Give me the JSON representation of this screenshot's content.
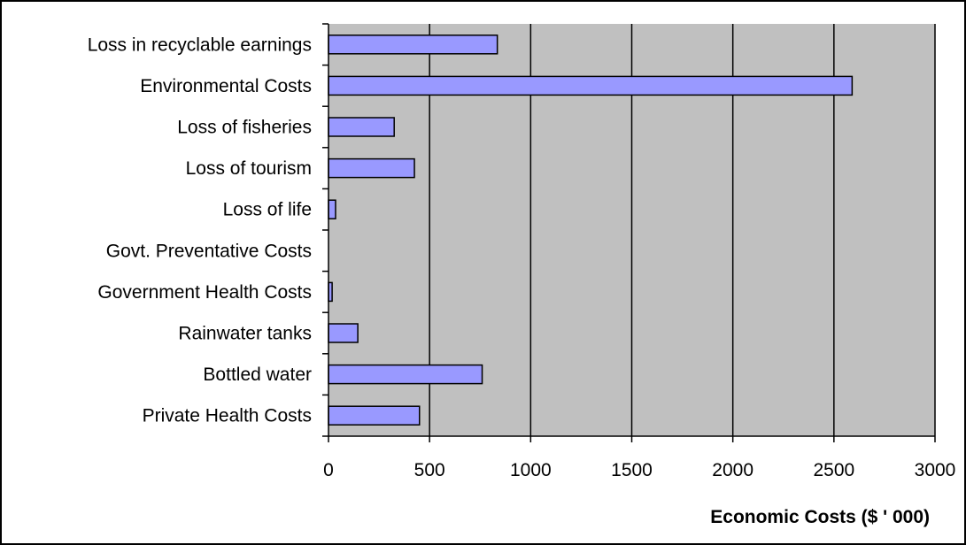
{
  "chart_data": {
    "type": "bar",
    "orientation": "horizontal",
    "categories": [
      "Loss in recyclable earnings",
      "Environmental Costs",
      "Loss of fisheries",
      "Loss of tourism",
      "Loss of life",
      "Govt. Preventative Costs",
      "Government Health Costs",
      "Rainwater tanks",
      "Bottled water",
      "Private Health Costs"
    ],
    "values": [
      835,
      2590,
      325,
      425,
      35,
      0,
      18,
      145,
      760,
      450
    ],
    "title": "",
    "xlabel": "Economic Costs ($ ' 000)",
    "ylabel": "",
    "xlim": [
      0,
      3000
    ],
    "xticks": [
      0,
      500,
      1000,
      1500,
      2000,
      2500,
      3000
    ],
    "grid": "vertical",
    "legend": "none",
    "colors": {
      "bar_fill": "#9999ff",
      "bar_stroke": "#000000",
      "plot_background": "#c0c0c0",
      "gridline": "#000000",
      "page_border": "#000000"
    }
  }
}
